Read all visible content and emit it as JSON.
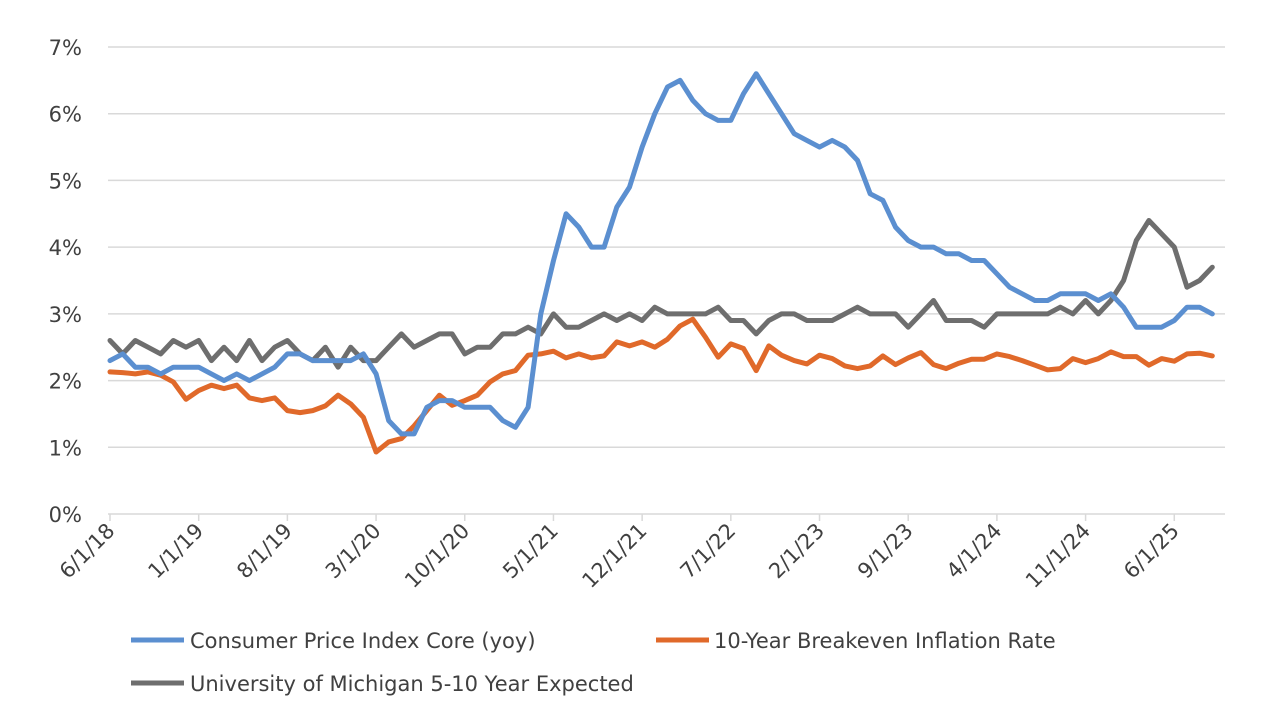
{
  "chart_data": {
    "type": "line",
    "title": "",
    "xlabel": "",
    "ylabel": "",
    "ylim": [
      0,
      7
    ],
    "y_ticks": [
      "0%",
      "1%",
      "2%",
      "3%",
      "4%",
      "5%",
      "6%",
      "7%"
    ],
    "x_start": "6/1/18",
    "x_frequency": "monthly",
    "x_tick_labels": [
      "6/1/18",
      "1/1/19",
      "8/1/19",
      "3/1/20",
      "10/1/20",
      "5/1/21",
      "12/1/21",
      "7/1/22",
      "2/1/23",
      "9/1/23",
      "4/1/24",
      "11/1/24",
      "6/1/25"
    ],
    "grid": "horizontal",
    "legend_position": "bottom",
    "series": [
      {
        "name": "Consumer Price Index Core (yoy)",
        "color": "#5b8fd0",
        "values": [
          2.3,
          2.4,
          2.2,
          2.2,
          2.1,
          2.2,
          2.2,
          2.2,
          2.1,
          2.0,
          2.1,
          2.0,
          2.1,
          2.2,
          2.4,
          2.4,
          2.3,
          2.3,
          2.3,
          2.3,
          2.4,
          2.1,
          1.4,
          1.2,
          1.2,
          1.6,
          1.7,
          1.7,
          1.6,
          1.6,
          1.6,
          1.4,
          1.3,
          1.6,
          3.0,
          3.8,
          4.5,
          4.3,
          4.0,
          4.0,
          4.6,
          4.9,
          5.5,
          6.0,
          6.4,
          6.5,
          6.2,
          6.0,
          5.9,
          5.9,
          6.3,
          6.6,
          6.3,
          6.0,
          5.7,
          5.6,
          5.5,
          5.6,
          5.5,
          5.3,
          4.8,
          4.7,
          4.3,
          4.1,
          4.0,
          4.0,
          3.9,
          3.9,
          3.8,
          3.8,
          3.6,
          3.4,
          3.3,
          3.2,
          3.2,
          3.3,
          3.3,
          3.3,
          3.2,
          3.3,
          3.1,
          2.8,
          2.8,
          2.8,
          2.9,
          3.1,
          3.1,
          3.0
        ]
      },
      {
        "name": "10-Year Breakeven Inflation Rate",
        "color": "#e0692a",
        "values": [
          2.13,
          2.12,
          2.1,
          2.13,
          2.08,
          1.98,
          1.72,
          1.85,
          1.93,
          1.88,
          1.93,
          1.74,
          1.7,
          1.74,
          1.55,
          1.52,
          1.55,
          1.62,
          1.78,
          1.65,
          1.45,
          0.93,
          1.08,
          1.13,
          1.32,
          1.55,
          1.78,
          1.63,
          1.7,
          1.78,
          1.98,
          2.1,
          2.15,
          2.38,
          2.4,
          2.44,
          2.34,
          2.4,
          2.34,
          2.37,
          2.58,
          2.52,
          2.58,
          2.5,
          2.62,
          2.82,
          2.92,
          2.65,
          2.35,
          2.55,
          2.48,
          2.15,
          2.52,
          2.38,
          2.3,
          2.25,
          2.38,
          2.33,
          2.22,
          2.18,
          2.22,
          2.37,
          2.24,
          2.34,
          2.42,
          2.24,
          2.18,
          2.26,
          2.32,
          2.32,
          2.4,
          2.36,
          2.3,
          2.23,
          2.16,
          2.18,
          2.33,
          2.27,
          2.33,
          2.43,
          2.36,
          2.36,
          2.23,
          2.33,
          2.29,
          2.4,
          2.41,
          2.37
        ]
      },
      {
        "name": "University of Michigan 5-10 Year Expected",
        "color": "#6e6e6e",
        "values": [
          2.6,
          2.4,
          2.6,
          2.5,
          2.4,
          2.6,
          2.5,
          2.6,
          2.3,
          2.5,
          2.3,
          2.6,
          2.3,
          2.5,
          2.6,
          2.4,
          2.3,
          2.5,
          2.2,
          2.5,
          2.3,
          2.3,
          2.5,
          2.7,
          2.5,
          2.6,
          2.7,
          2.7,
          2.4,
          2.5,
          2.5,
          2.7,
          2.7,
          2.8,
          2.7,
          3.0,
          2.8,
          2.8,
          2.9,
          3.0,
          2.9,
          3.0,
          2.9,
          3.1,
          3.0,
          3.0,
          3.0,
          3.0,
          3.1,
          2.9,
          2.9,
          2.7,
          2.9,
          3.0,
          3.0,
          2.9,
          2.9,
          2.9,
          3.0,
          3.1,
          3.0,
          3.0,
          3.0,
          2.8,
          3.0,
          3.2,
          2.9,
          2.9,
          2.9,
          2.8,
          3.0,
          3.0,
          3.0,
          3.0,
          3.0,
          3.1,
          3.0,
          3.2,
          3.0,
          3.2,
          3.5,
          4.1,
          4.4,
          4.2,
          4.0,
          3.4,
          3.5,
          3.7
        ]
      }
    ]
  }
}
